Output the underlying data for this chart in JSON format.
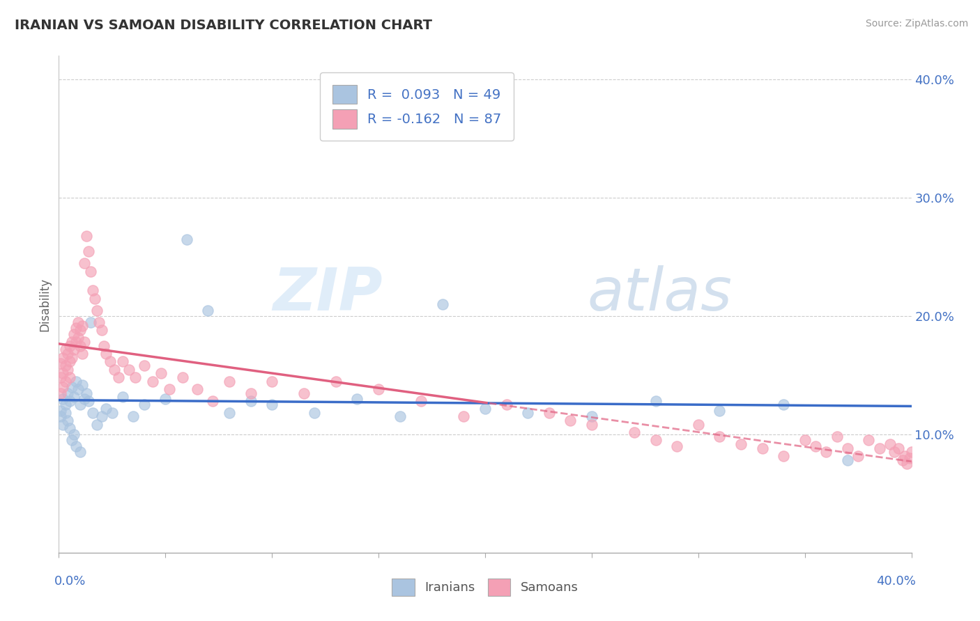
{
  "title": "IRANIAN VS SAMOAN DISABILITY CORRELATION CHART",
  "source": "Source: ZipAtlas.com",
  "ylabel": "Disability",
  "xlim": [
    0,
    0.4
  ],
  "ylim": [
    0,
    0.42
  ],
  "yticks": [
    0.1,
    0.2,
    0.3,
    0.4
  ],
  "ytick_labels": [
    "10.0%",
    "20.0%",
    "30.0%",
    "40.0%"
  ],
  "iranian_R": 0.093,
  "iranian_N": 49,
  "samoan_R": -0.162,
  "samoan_N": 87,
  "iranian_color": "#aac4e0",
  "samoan_color": "#f4a0b5",
  "iranian_line_color": "#3a6cc8",
  "samoan_line_color": "#e06080",
  "watermark_zip": "ZIP",
  "watermark_atlas": "atlas",
  "iranians_x": [
    0.001,
    0.001,
    0.002,
    0.002,
    0.003,
    0.003,
    0.004,
    0.004,
    0.005,
    0.005,
    0.006,
    0.006,
    0.007,
    0.007,
    0.008,
    0.008,
    0.009,
    0.01,
    0.01,
    0.011,
    0.012,
    0.013,
    0.014,
    0.015,
    0.016,
    0.018,
    0.02,
    0.022,
    0.025,
    0.03,
    0.035,
    0.04,
    0.05,
    0.06,
    0.07,
    0.08,
    0.09,
    0.1,
    0.12,
    0.14,
    0.16,
    0.18,
    0.2,
    0.22,
    0.25,
    0.28,
    0.31,
    0.34,
    0.37
  ],
  "iranians_y": [
    0.12,
    0.115,
    0.13,
    0.108,
    0.125,
    0.118,
    0.135,
    0.112,
    0.128,
    0.105,
    0.14,
    0.095,
    0.132,
    0.1,
    0.145,
    0.09,
    0.138,
    0.125,
    0.085,
    0.142,
    0.13,
    0.135,
    0.128,
    0.195,
    0.118,
    0.108,
    0.115,
    0.122,
    0.118,
    0.132,
    0.115,
    0.125,
    0.13,
    0.265,
    0.205,
    0.118,
    0.128,
    0.125,
    0.118,
    0.13,
    0.115,
    0.21,
    0.122,
    0.118,
    0.115,
    0.128,
    0.12,
    0.125,
    0.078
  ],
  "samoans_x": [
    0.001,
    0.001,
    0.001,
    0.002,
    0.002,
    0.002,
    0.003,
    0.003,
    0.003,
    0.004,
    0.004,
    0.005,
    0.005,
    0.005,
    0.006,
    0.006,
    0.007,
    0.007,
    0.008,
    0.008,
    0.009,
    0.009,
    0.01,
    0.01,
    0.011,
    0.011,
    0.012,
    0.012,
    0.013,
    0.014,
    0.015,
    0.016,
    0.017,
    0.018,
    0.019,
    0.02,
    0.021,
    0.022,
    0.024,
    0.026,
    0.028,
    0.03,
    0.033,
    0.036,
    0.04,
    0.044,
    0.048,
    0.052,
    0.058,
    0.065,
    0.072,
    0.08,
    0.09,
    0.1,
    0.115,
    0.13,
    0.15,
    0.17,
    0.19,
    0.21,
    0.23,
    0.24,
    0.25,
    0.27,
    0.28,
    0.29,
    0.3,
    0.31,
    0.32,
    0.33,
    0.34,
    0.35,
    0.355,
    0.36,
    0.365,
    0.37,
    0.375,
    0.38,
    0.385,
    0.39,
    0.392,
    0.394,
    0.396,
    0.397,
    0.398,
    0.399,
    0.4
  ],
  "samoans_y": [
    0.16,
    0.148,
    0.135,
    0.165,
    0.152,
    0.14,
    0.172,
    0.158,
    0.145,
    0.168,
    0.155,
    0.175,
    0.162,
    0.148,
    0.178,
    0.165,
    0.185,
    0.172,
    0.19,
    0.178,
    0.195,
    0.182,
    0.188,
    0.175,
    0.192,
    0.168,
    0.245,
    0.178,
    0.268,
    0.255,
    0.238,
    0.222,
    0.215,
    0.205,
    0.195,
    0.188,
    0.175,
    0.168,
    0.162,
    0.155,
    0.148,
    0.162,
    0.155,
    0.148,
    0.158,
    0.145,
    0.152,
    0.138,
    0.148,
    0.138,
    0.128,
    0.145,
    0.135,
    0.145,
    0.135,
    0.145,
    0.138,
    0.128,
    0.115,
    0.125,
    0.118,
    0.112,
    0.108,
    0.102,
    0.095,
    0.09,
    0.108,
    0.098,
    0.092,
    0.088,
    0.082,
    0.095,
    0.09,
    0.085,
    0.098,
    0.088,
    0.082,
    0.095,
    0.088,
    0.092,
    0.085,
    0.088,
    0.078,
    0.082,
    0.075,
    0.08,
    0.085
  ]
}
